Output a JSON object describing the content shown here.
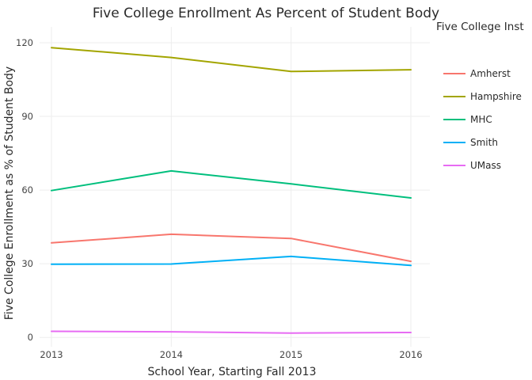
{
  "chart_data": {
    "type": "line",
    "title": "Five College Enrollment As Percent of Student Body",
    "xlabel": "School Year, Starting Fall 2013",
    "ylabel": "Five College Enrollment as % of Student Body",
    "x": [
      2013,
      2014,
      2015,
      2016
    ],
    "x_tick_labels": [
      "2013",
      "2014",
      "2015",
      "2016"
    ],
    "y_ticks": [
      0,
      30,
      60,
      90,
      120
    ],
    "y_tick_labels": [
      "0",
      "30",
      "60",
      "90",
      "120"
    ],
    "xlim": [
      2013,
      2016
    ],
    "ylim": [
      -2.5,
      124.5
    ],
    "grid": true,
    "legend_title": "Five College Inst",
    "legend_position": "right",
    "series": [
      {
        "name": "Amherst",
        "color": "#F8766D",
        "values": [
          38.5,
          42.0,
          40.3,
          31.0
        ]
      },
      {
        "name": "Hampshire",
        "color": "#A3A500",
        "values": [
          118.0,
          114.0,
          108.3,
          109.0
        ]
      },
      {
        "name": "MHC",
        "color": "#00BF7D",
        "values": [
          59.8,
          67.8,
          62.5,
          56.8
        ]
      },
      {
        "name": "Smith",
        "color": "#00B0F6",
        "values": [
          29.8,
          29.9,
          33.0,
          29.3
        ]
      },
      {
        "name": "UMass",
        "color": "#E76BF3",
        "values": [
          2.5,
          2.3,
          1.8,
          2.0
        ]
      }
    ]
  }
}
